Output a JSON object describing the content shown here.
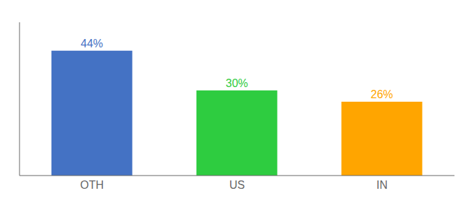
{
  "chart_data": {
    "type": "bar",
    "categories": [
      "OTH",
      "US",
      "IN"
    ],
    "values": [
      44,
      30,
      26
    ],
    "value_labels": [
      "44%",
      "30%",
      "26%"
    ],
    "colors": [
      "#4472C4",
      "#2ECC40",
      "#FFA500"
    ],
    "ylim": [
      0,
      54
    ],
    "data_labels": true,
    "tick_labels": "x",
    "grid": false
  }
}
